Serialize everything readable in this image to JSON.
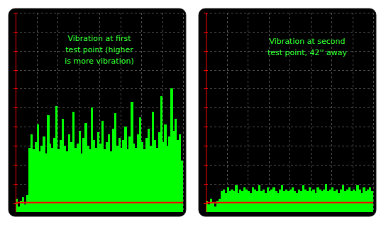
{
  "chart_data": [
    {
      "type": "bar",
      "annotation": [
        "Vibration at first",
        "test point (higher",
        "is more vibration)"
      ],
      "x": [
        0,
        1,
        2,
        3,
        4,
        5,
        6,
        7,
        8,
        9,
        10,
        11,
        12,
        13,
        14,
        15,
        16,
        17,
        18,
        19,
        20,
        21,
        22,
        23,
        24,
        25,
        26,
        27,
        28,
        29,
        30,
        31,
        32,
        33,
        34,
        35,
        36,
        37,
        38,
        39,
        40,
        41,
        42,
        43,
        44,
        45,
        46,
        47,
        48,
        49,
        50,
        51,
        52,
        53,
        54,
        55,
        56,
        57,
        58,
        59,
        60,
        61,
        62,
        63,
        64,
        65,
        66,
        67,
        68,
        69,
        70,
        71,
        72,
        73,
        74,
        75,
        76,
        77,
        78,
        79
      ],
      "values": [
        0.2,
        -0.2,
        0.1,
        0.3,
        -0.1,
        0.4,
        2.9,
        3.6,
        2.8,
        3.2,
        4.1,
        2.7,
        3.0,
        3.5,
        2.6,
        4.6,
        3.1,
        2.9,
        3.4,
        5.1,
        2.8,
        3.3,
        4.4,
        3.0,
        2.7,
        3.6,
        3.2,
        4.8,
        2.9,
        3.1,
        3.8,
        2.6,
        3.4,
        4.2,
        3.0,
        2.8,
        5.0,
        3.3,
        2.9,
        3.7,
        3.1,
        4.3,
        2.8,
        3.2,
        3.6,
        2.7,
        3.9,
        4.7,
        3.0,
        3.4,
        2.9,
        3.3,
        4.0,
        2.8,
        3.5,
        5.3,
        3.1,
        2.9,
        3.6,
        4.5,
        3.2,
        2.8,
        3.4,
        3.9,
        3.0,
        4.8,
        3.3,
        2.9,
        3.7,
        5.6,
        3.2,
        4.1,
        3.0,
        3.5,
        6.0,
        3.8,
        4.4,
        3.3,
        3.6,
        2.2
      ],
      "color": "#00ff00",
      "xlim": [
        0,
        80
      ],
      "xticks": [
        0,
        10,
        20,
        30,
        40,
        50,
        60,
        70,
        80
      ],
      "ylim": [
        -0.5,
        10
      ],
      "yticks": [
        0,
        1,
        2,
        3,
        4,
        5,
        6,
        7,
        8,
        9,
        10
      ],
      "grid": true,
      "tick_labels": false
    },
    {
      "type": "bar",
      "annotation": [
        "Vibration at second",
        "test point, 42'' away"
      ],
      "x": [
        0,
        1,
        2,
        3,
        4,
        5,
        6,
        7,
        8,
        9,
        10,
        11,
        12,
        13,
        14,
        15,
        16,
        17,
        18,
        19,
        20,
        21,
        22,
        23,
        24,
        25,
        26,
        27,
        28,
        29,
        30,
        31,
        32,
        33,
        34,
        35,
        36,
        37,
        38,
        39,
        40,
        41,
        42,
        43,
        44,
        45,
        46,
        47,
        48,
        49,
        50,
        51,
        52,
        53,
        54,
        55,
        56,
        57,
        58,
        59,
        60,
        61,
        62,
        63,
        64,
        65,
        66,
        67,
        68,
        69,
        70,
        71,
        72,
        73,
        74,
        75,
        76,
        77,
        78,
        79
      ],
      "values": [
        0.1,
        -0.1,
        0.2,
        0.0,
        -0.2,
        0.1,
        0.2,
        0.6,
        0.7,
        0.5,
        0.8,
        0.6,
        0.7,
        0.6,
        0.9,
        0.5,
        0.7,
        0.6,
        0.8,
        0.7,
        0.6,
        0.5,
        0.8,
        0.7,
        0.6,
        0.9,
        0.6,
        0.7,
        0.5,
        0.8,
        0.6,
        0.7,
        0.8,
        0.6,
        0.5,
        0.7,
        0.9,
        0.6,
        0.7,
        0.6,
        0.7,
        0.8,
        0.6,
        0.5,
        0.7,
        0.6,
        0.9,
        0.7,
        0.6,
        0.8,
        0.6,
        0.7,
        0.5,
        0.8,
        0.7,
        0.6,
        0.7,
        1.0,
        0.6,
        0.7,
        0.8,
        0.6,
        0.7,
        0.5,
        0.7,
        0.9,
        0.6,
        0.7,
        0.8,
        0.6,
        0.7,
        0.6,
        0.9,
        0.7,
        0.5,
        0.8,
        0.6,
        0.7,
        0.8,
        0.6
      ],
      "color": "#00ff00",
      "xlim": [
        0,
        80
      ],
      "xticks": [
        0,
        10,
        20,
        30,
        40,
        50,
        60,
        70,
        80
      ],
      "ylim": [
        -0.5,
        10
      ],
      "yticks": [
        0,
        1,
        2,
        3,
        4,
        5,
        6,
        7,
        8,
        9,
        10
      ],
      "grid": true,
      "tick_labels": false
    }
  ]
}
